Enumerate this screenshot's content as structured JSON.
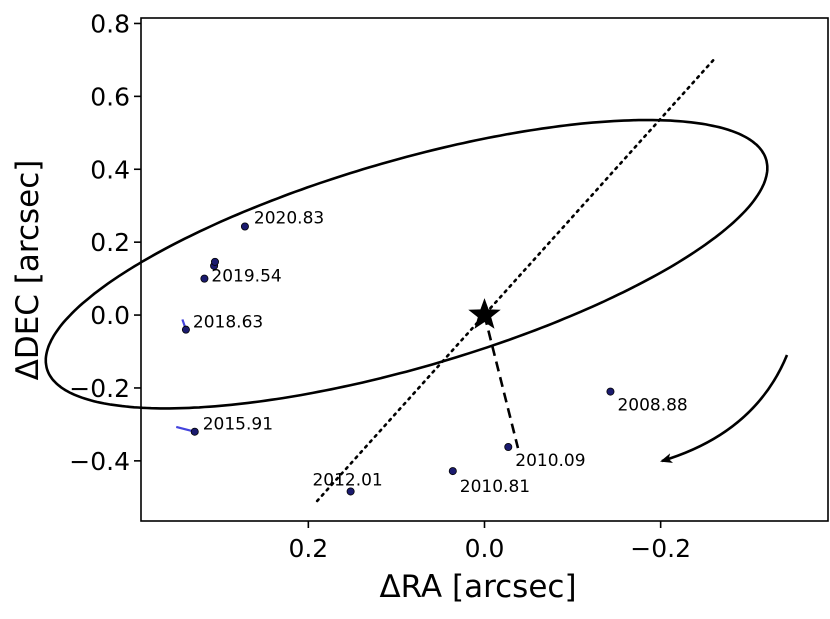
{
  "chart_data": {
    "type": "scatter",
    "title": "",
    "xlabel": "ΔRA [arcsec]",
    "ylabel": "ΔDEC [arcsec]",
    "xlim": [
      0.39,
      -0.39
    ],
    "ylim": [
      -0.565,
      0.815
    ],
    "x_inverted": true,
    "xticks": [
      0.2,
      0.0,
      -0.2
    ],
    "xtick_labels": [
      "0.2",
      "0.0",
      "−0.2"
    ],
    "yticks": [
      -0.4,
      -0.2,
      0.0,
      0.2,
      0.4,
      0.6,
      0.8
    ],
    "ytick_labels": [
      "−0.4",
      "−0.2",
      "0.0",
      "0.2",
      "0.4",
      "0.6",
      "0.8"
    ],
    "grid": false,
    "star": {
      "x": 0.0,
      "y": 0.0,
      "marker": "star"
    },
    "orbit": {
      "center": [
        -0.0885,
        0.1395
      ],
      "semi_major": 0.52,
      "semi_minor": 0.232,
      "major_axis_angle_deg": 43.5,
      "color": "#000000"
    },
    "line_of_nodes": {
      "x": [
        0.19,
        -0.26
      ],
      "y": [
        -0.51,
        0.7
      ],
      "style": "dotted"
    },
    "periastron_line": {
      "x": [
        0.0,
        -0.038
      ],
      "y": [
        0.0,
        -0.365
      ],
      "style": "dashed"
    },
    "observations": [
      {
        "epoch": "2008.88",
        "x": -0.143,
        "y": -0.21
      },
      {
        "epoch": "2010.09",
        "x": -0.027,
        "y": -0.362
      },
      {
        "epoch": "2010.81",
        "x": 0.036,
        "y": -0.428
      },
      {
        "epoch": "2012.01",
        "x": 0.152,
        "y": -0.484
      },
      {
        "epoch": "2015.91",
        "x": 0.329,
        "y": -0.32
      },
      {
        "epoch": "2018.63",
        "x": 0.339,
        "y": -0.04
      },
      {
        "epoch": "2019.54",
        "x": 0.318,
        "y": 0.1
      },
      {
        "epoch": null,
        "x": 0.307,
        "y": 0.135
      },
      {
        "epoch": null,
        "x": 0.306,
        "y": 0.146
      },
      {
        "epoch": "2020.83",
        "x": 0.272,
        "y": 0.243
      }
    ],
    "residual_segments": [
      {
        "x": [
          0.329,
          0.35
        ],
        "y": [
          -0.32,
          -0.307
        ]
      },
      {
        "x": [
          0.339,
          0.343
        ],
        "y": [
          -0.04,
          -0.012
        ]
      },
      {
        "x": [
          0.307,
          0.31
        ],
        "y": [
          0.135,
          0.128
        ]
      }
    ],
    "colors": {
      "marker": "#1a1a6e",
      "residual": "#4444dd",
      "line": "#000000"
    },
    "direction_arrow": {
      "sense": "counter-clockwise"
    }
  }
}
